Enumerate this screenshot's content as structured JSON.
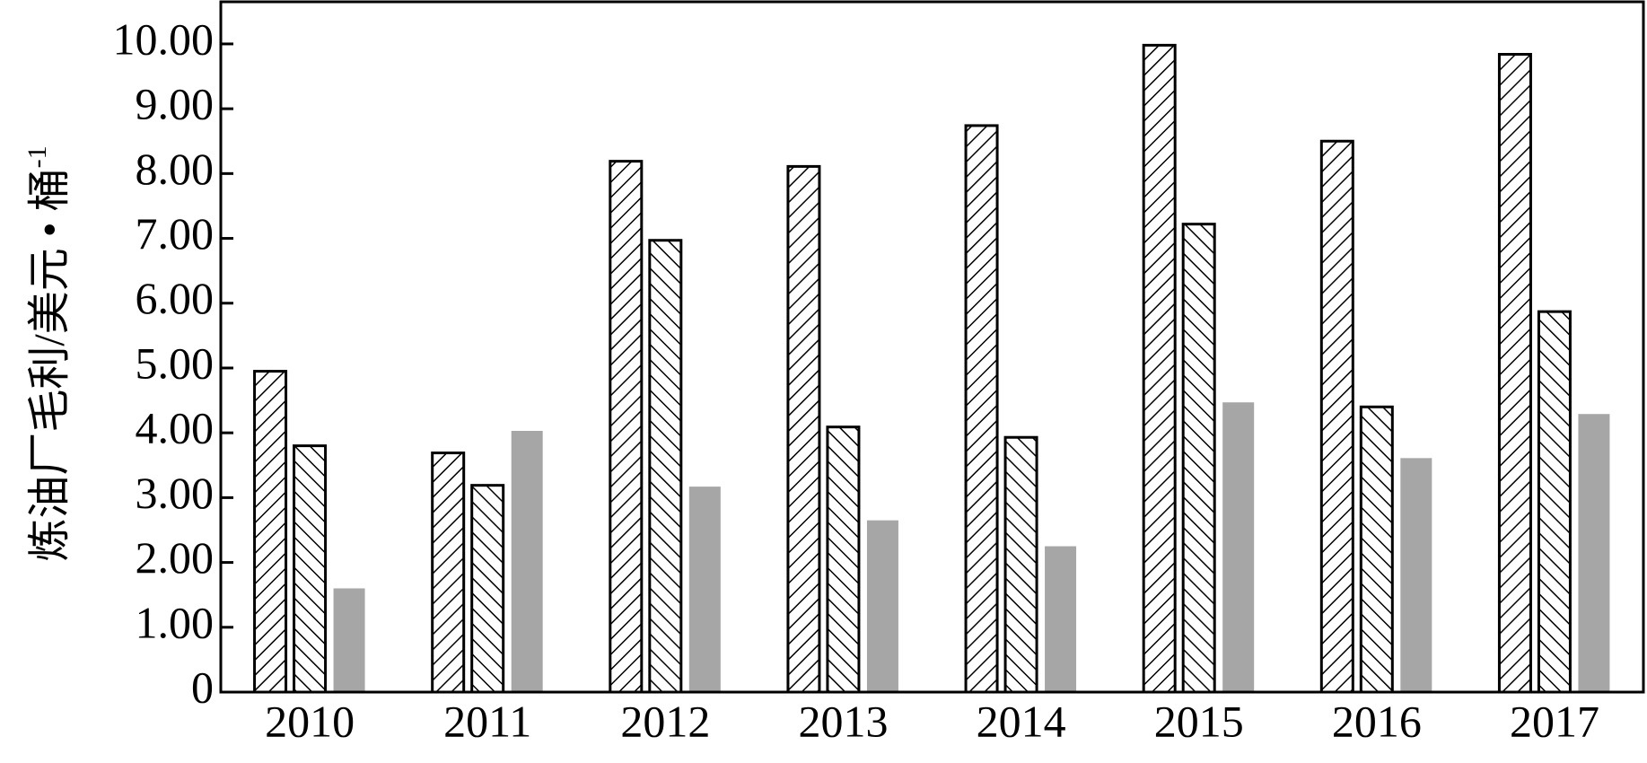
{
  "chart_data": {
    "type": "bar",
    "y_label": "炼油厂毛利/美元 • 桶",
    "y_label_sup": "-1",
    "categories": [
      "2010",
      "2011",
      "2012",
      "2013",
      "2014",
      "2015",
      "2016",
      "2017"
    ],
    "series": [
      {
        "color": "#000000",
        "pattern": "forward",
        "values": [
          4.95,
          3.69,
          8.19,
          8.11,
          8.74,
          9.98,
          8.5,
          9.84
        ]
      },
      {
        "color": "#000000",
        "pattern": "backward",
        "values": [
          3.8,
          3.19,
          6.97,
          4.09,
          3.93,
          7.22,
          4.4,
          5.87
        ]
      },
      {
        "color": "#a6a6a6",
        "pattern": "solid",
        "values": [
          1.6,
          4.03,
          3.17,
          2.65,
          2.25,
          4.47,
          3.61,
          4.29
        ]
      }
    ],
    "ylim": [
      0,
      10.65
    ],
    "yticks": [
      0,
      {
        "value": 1,
        "label": "1.00"
      },
      {
        "value": 2,
        "label": "2.00"
      },
      {
        "value": 3,
        "label": "3.00"
      },
      {
        "value": 4,
        "label": "4.00"
      },
      {
        "value": 5,
        "label": "5.00"
      },
      {
        "value": 6,
        "label": "6.00"
      },
      {
        "value": 7,
        "label": "7.00"
      },
      {
        "value": 8,
        "label": "8.00"
      },
      {
        "value": 9,
        "label": "9.00"
      },
      {
        "value": 10,
        "label": "10.00"
      }
    ],
    "grid": false
  }
}
